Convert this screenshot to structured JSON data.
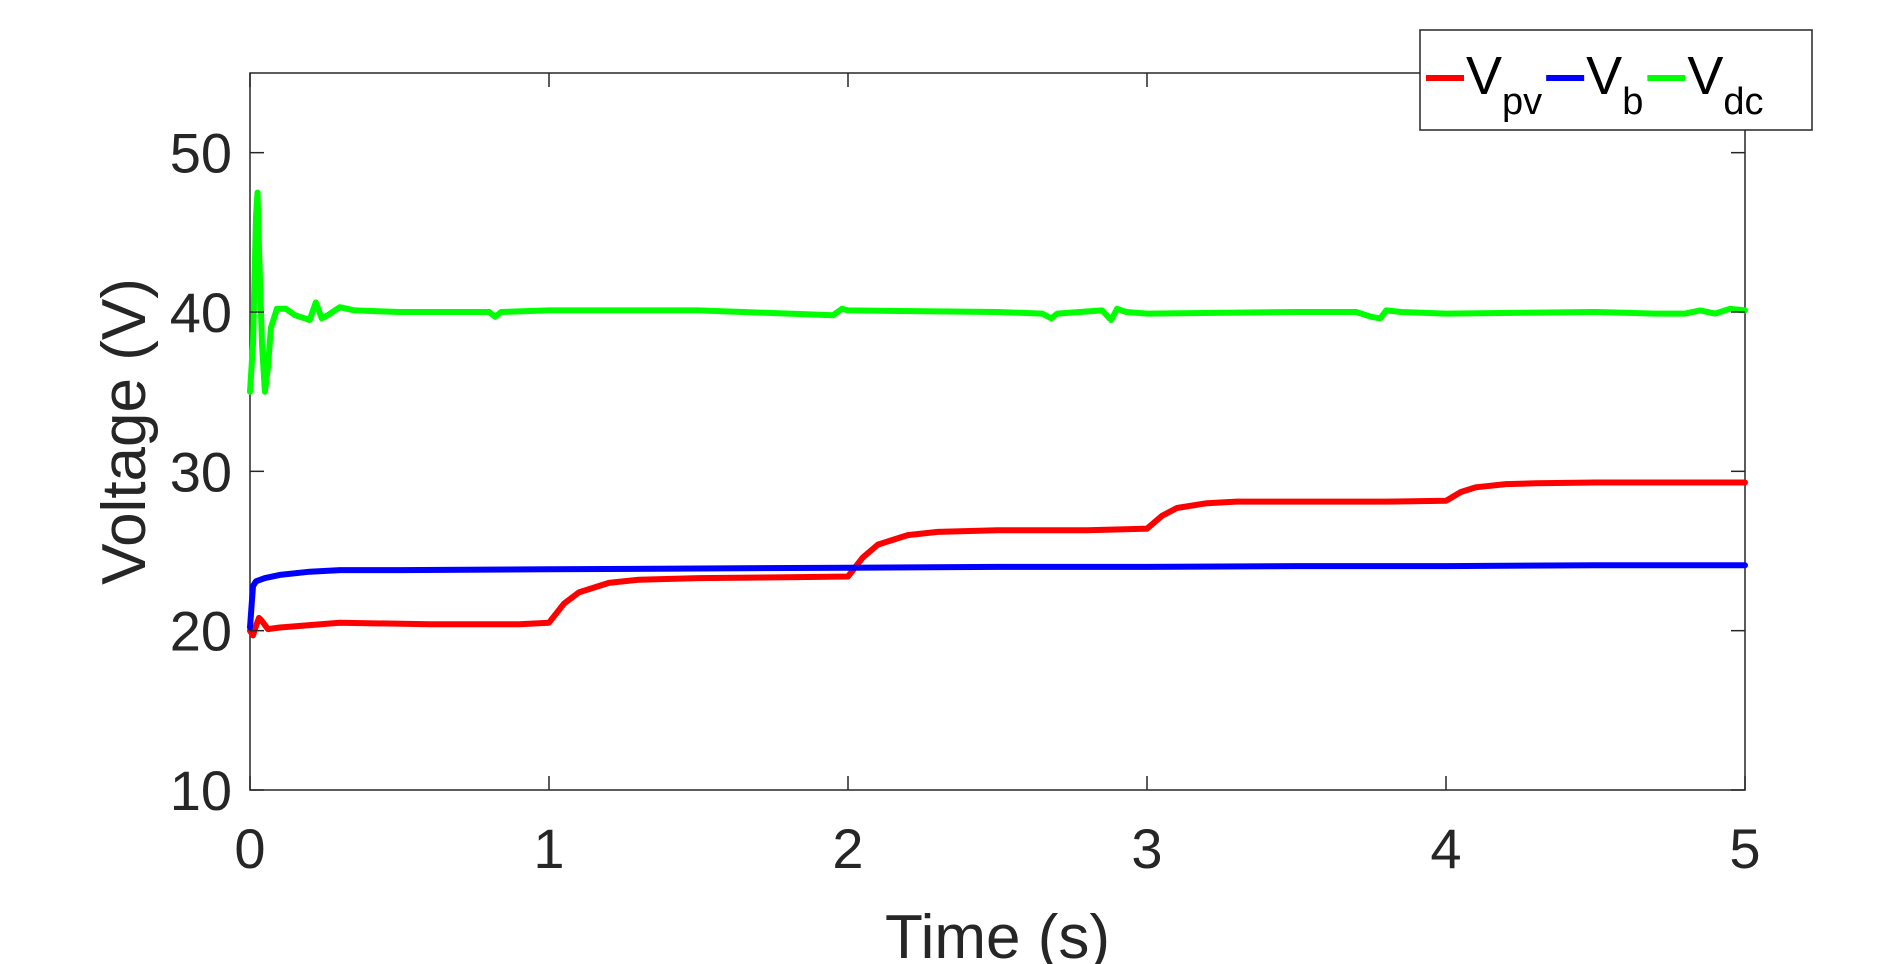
{
  "chart_data": {
    "type": "line",
    "xlabel": "Time (s)",
    "ylabel": "Voltage (V)",
    "xlim": [
      0,
      5
    ],
    "ylim": [
      10,
      55
    ],
    "xticks": [
      "0",
      "1",
      "2",
      "3",
      "4",
      "5"
    ],
    "yticks": [
      "10",
      "20",
      "30",
      "40",
      "50"
    ],
    "grid": false,
    "legend_position": "top-right",
    "series": [
      {
        "name": "V",
        "subscript": "pv",
        "color": "#ff0000",
        "x": [
          0,
          0.01,
          0.02,
          0.03,
          0.04,
          0.06,
          0.1,
          0.3,
          0.6,
          0.9,
          1.0,
          1.05,
          1.1,
          1.2,
          1.3,
          1.5,
          1.8,
          2.0,
          2.05,
          2.1,
          2.2,
          2.3,
          2.5,
          2.8,
          3.0,
          3.05,
          3.1,
          3.2,
          3.3,
          3.5,
          3.8,
          4.0,
          4.05,
          4.1,
          4.2,
          4.3,
          4.5,
          4.8,
          5.0
        ],
        "y": [
          20.0,
          19.7,
          20.3,
          20.8,
          20.6,
          20.1,
          20.2,
          20.5,
          20.4,
          20.4,
          20.5,
          21.7,
          22.4,
          23.0,
          23.2,
          23.3,
          23.35,
          23.4,
          24.6,
          25.4,
          26.0,
          26.2,
          26.3,
          26.3,
          26.4,
          27.2,
          27.7,
          28.0,
          28.1,
          28.1,
          28.1,
          28.15,
          28.7,
          29.0,
          29.2,
          29.25,
          29.3,
          29.3,
          29.3
        ]
      },
      {
        "name": "V",
        "subscript": "b",
        "color": "#0000ff",
        "x": [
          0,
          0.005,
          0.01,
          0.02,
          0.05,
          0.1,
          0.2,
          0.3,
          0.5,
          1.0,
          1.5,
          2.0,
          2.5,
          3.0,
          3.5,
          4.0,
          4.5,
          5.0
        ],
        "y": [
          20.2,
          21.5,
          22.8,
          23.1,
          23.3,
          23.5,
          23.7,
          23.8,
          23.8,
          23.85,
          23.9,
          23.95,
          24.0,
          24.0,
          24.05,
          24.05,
          24.1,
          24.1
        ]
      },
      {
        "name": "V",
        "subscript": "dc",
        "color": "#00ff00",
        "x": [
          0,
          0.01,
          0.02,
          0.025,
          0.03,
          0.04,
          0.05,
          0.06,
          0.07,
          0.09,
          0.12,
          0.15,
          0.2,
          0.22,
          0.24,
          0.26,
          0.3,
          0.35,
          0.5,
          0.8,
          0.82,
          0.84,
          1.0,
          1.5,
          1.95,
          1.98,
          2.0,
          2.5,
          2.65,
          2.68,
          2.7,
          2.85,
          2.88,
          2.9,
          2.93,
          3.0,
          3.5,
          3.7,
          3.75,
          3.78,
          3.8,
          3.85,
          4.0,
          4.5,
          4.7,
          4.8,
          4.85,
          4.9,
          4.95,
          5.0
        ],
        "y": [
          35,
          38,
          46,
          47.5,
          44,
          38,
          35,
          36.5,
          39,
          40.2,
          40.2,
          39.8,
          39.5,
          40.6,
          39.6,
          39.8,
          40.3,
          40.1,
          40.0,
          40.0,
          39.7,
          40.0,
          40.1,
          40.1,
          39.8,
          40.2,
          40.1,
          40.0,
          39.9,
          39.6,
          39.9,
          40.1,
          39.5,
          40.2,
          40.0,
          39.9,
          40.0,
          40.0,
          39.7,
          39.6,
          40.1,
          40.0,
          39.9,
          40.0,
          39.9,
          39.9,
          40.1,
          39.9,
          40.2,
          40.1
        ]
      }
    ]
  }
}
